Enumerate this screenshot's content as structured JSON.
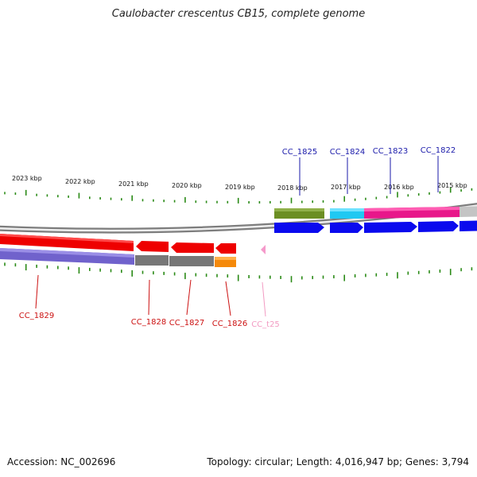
{
  "title": "Caulobacter crescentus CB15, complete genome",
  "footer": {
    "accession": "Accession: NC_002696",
    "topology": "Topology: circular; Length: 4,016,947 bp; Genes: 3,794"
  },
  "colors": {
    "backbone": "#8c8c8c",
    "tick": "#2a8a16",
    "label_blue": "#1a1aaa",
    "label_red": "#cc1111",
    "label_pink": "#f29ac2"
  },
  "kbp_labels": [
    "2023 kbp",
    "2022 kbp",
    "2021 kbp",
    "2020 kbp",
    "2019 kbp",
    "2018 kbp",
    "2017 kbp",
    "2016 kbp",
    "2015 kbp"
  ],
  "genes_forward": [
    "CC_1825",
    "CC_1824",
    "CC_1823",
    "CC_1822"
  ],
  "genes_reverse": [
    "CC_1829",
    "CC_1828",
    "CC_1827",
    "CC_1826"
  ],
  "rna": [
    "CC_t25"
  ]
}
